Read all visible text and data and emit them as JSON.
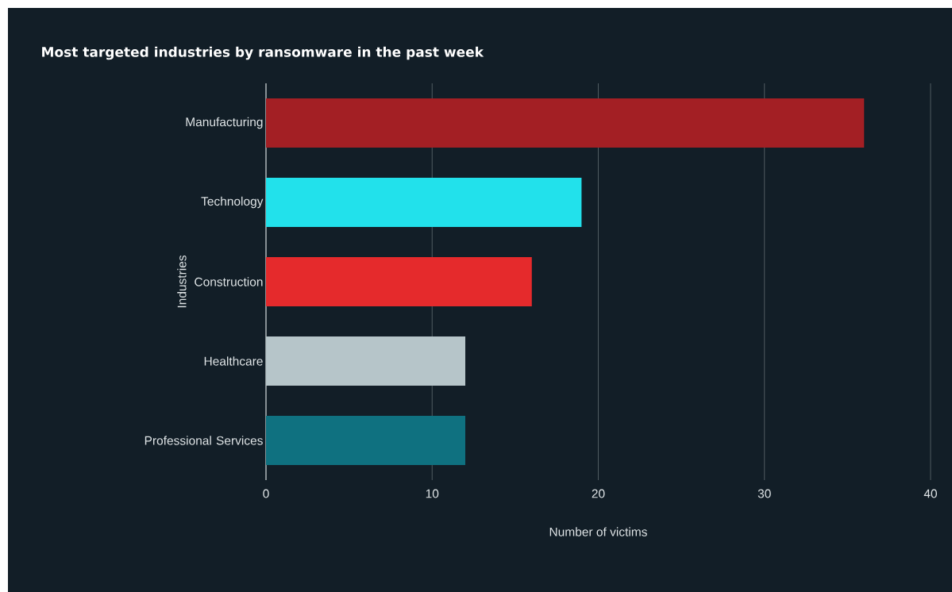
{
  "chart_data": {
    "type": "bar",
    "orientation": "horizontal",
    "title": "Most targeted industries by ransomware in the past week",
    "xlabel": "Number of victims",
    "ylabel": "Industries",
    "categories": [
      "Manufacturing",
      "Technology",
      "Construction",
      "Healthcare",
      "Professional Services"
    ],
    "values": [
      36,
      19,
      16,
      12,
      12
    ],
    "colors": [
      "#a31f24",
      "#22e1eb",
      "#e52a2c",
      "#b6c5c9",
      "#0f7180"
    ],
    "xlim": [
      0,
      40
    ],
    "xticks": [
      0,
      10,
      20,
      30,
      40
    ],
    "grid": "x"
  }
}
